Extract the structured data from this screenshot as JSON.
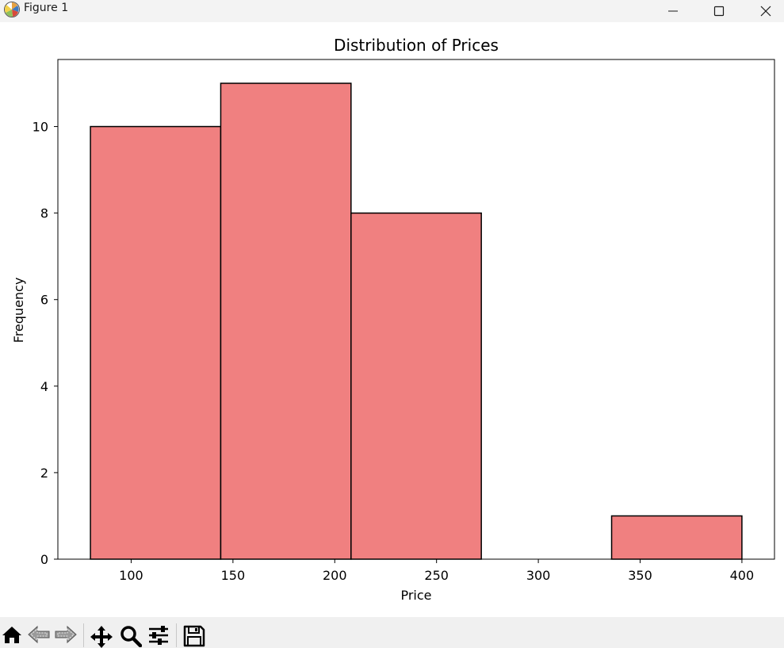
{
  "window": {
    "title": "Figure 1"
  },
  "toolbar": {
    "items": [
      {
        "icon": "home-icon"
      },
      {
        "icon": "back-icon"
      },
      {
        "icon": "forward-icon"
      },
      {
        "icon": "pan-icon"
      },
      {
        "icon": "zoom-icon"
      },
      {
        "icon": "configure-subplots-icon"
      },
      {
        "icon": "save-icon"
      }
    ]
  },
  "chart_data": {
    "type": "bar",
    "title": "Distribution of Prices",
    "xlabel": "Price",
    "ylabel": "Frequency",
    "bins": [
      {
        "x0": 80,
        "x1": 144,
        "count": 10
      },
      {
        "x0": 144,
        "x1": 208,
        "count": 11
      },
      {
        "x0": 208,
        "x1": 272,
        "count": 8
      },
      {
        "x0": 272,
        "x1": 336,
        "count": 0
      },
      {
        "x0": 336,
        "x1": 400,
        "count": 1
      }
    ],
    "xlim": [
      64,
      416
    ],
    "ylim": [
      0,
      11.55
    ],
    "xticks": [
      100,
      150,
      200,
      250,
      300,
      350,
      400
    ],
    "yticks": [
      0,
      2,
      4,
      6,
      8,
      10
    ],
    "bar_color": "#f08080",
    "edge_color": "#000000",
    "grid": false
  }
}
